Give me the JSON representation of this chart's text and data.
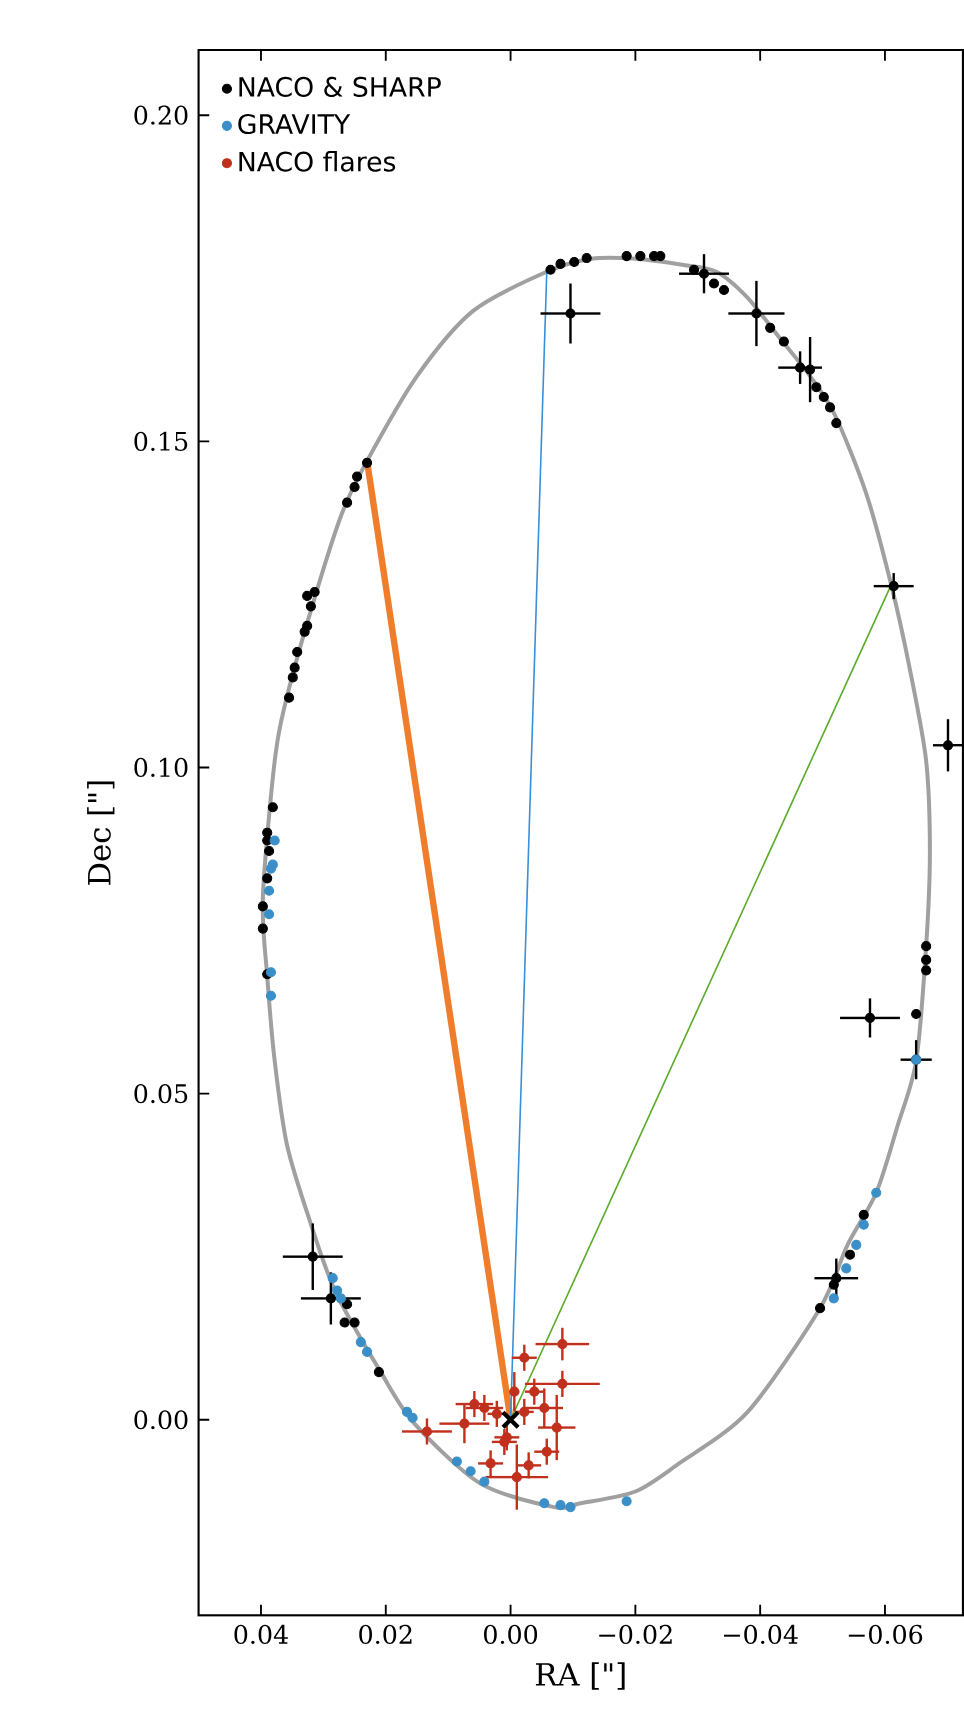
{
  "chart_data": {
    "type": "scatter",
    "xlabel": "RA [\"]",
    "ylabel": "Dec [\"]",
    "legend": "top left",
    "xlim": [
      0.05,
      -0.0725
    ],
    "ylim": [
      -0.03,
      0.21
    ],
    "xticks": [
      {
        "value": 0.04,
        "label": "0.04"
      },
      {
        "value": 0.02,
        "label": "0.02"
      },
      {
        "value": 0,
        "label": "0.00"
      },
      {
        "value": -0.02,
        "label": "−0.02"
      },
      {
        "value": -0.04,
        "label": "−0.04"
      },
      {
        "value": -0.06,
        "label": "−0.06"
      }
    ],
    "yticks": [
      {
        "value": 0,
        "label": "0.00"
      },
      {
        "value": 0.05,
        "label": "0.05"
      },
      {
        "value": 0.1,
        "label": "0.10"
      },
      {
        "value": 0.15,
        "label": "0.15"
      },
      {
        "value": 0.2,
        "label": "0.20"
      }
    ],
    "series": [
      {
        "type": "line",
        "color": "#ef7d2b",
        "marker": "none",
        "x": [
          0,
          0.023
        ],
        "values": [
          0,
          0.147
        ]
      },
      {
        "type": "line",
        "color": "#3a8fd9",
        "marker": "none",
        "x": [
          0,
          -0.0058
        ],
        "values": [
          0,
          0.176
        ]
      },
      {
        "type": "line",
        "color": "#5aaa2a",
        "marker": "none",
        "x": [
          0,
          -0.061
        ],
        "values": [
          0,
          0.128
        ]
      },
      {
        "name": "NACO & SHARP",
        "color": "#000000",
        "marker": "circle",
        "x": [
          -0.0064,
          -0.008,
          -0.0102,
          -0.0122,
          -0.0096,
          -0.0186,
          -0.0208,
          -0.023,
          -0.024,
          -0.0294,
          -0.031,
          -0.0326,
          -0.0342,
          -0.0394,
          -0.0416,
          -0.0438,
          -0.0464,
          -0.048,
          -0.049,
          -0.0502,
          -0.0512,
          -0.0522,
          -0.0614,
          0.023,
          0.0246,
          0.025,
          0.0262,
          0.0314,
          0.0326,
          0.032,
          0.0326,
          0.033,
          0.0342,
          0.0346,
          0.0349,
          0.0355,
          0.0381,
          0.039,
          0.039,
          0.0387,
          0.039,
          0.0397,
          0.0397,
          0.039,
          -0.0701,
          -0.0666,
          -0.0666,
          -0.0666,
          -0.065,
          -0.0576,
          -0.065,
          -0.0566,
          -0.0544,
          -0.0522,
          -0.0518,
          -0.0496,
          0.0317,
          0.0288,
          0.0262,
          0.0266,
          0.025,
          0.0211
        ],
        "values": [
          0.1763,
          0.1772,
          0.1775,
          0.1781,
          0.1696,
          0.1784,
          0.1784,
          0.1784,
          0.1784,
          0.1763,
          0.1757,
          0.1742,
          0.1732,
          0.1696,
          0.1674,
          0.1653,
          0.1613,
          0.161,
          0.1583,
          0.1568,
          0.1552,
          0.1528,
          0.1278,
          0.1467,
          0.1446,
          0.143,
          0.1406,
          0.1269,
          0.1263,
          0.1247,
          0.1217,
          0.1208,
          0.1177,
          0.1153,
          0.1138,
          0.1107,
          0.0939,
          0.09,
          0.0888,
          0.0872,
          0.083,
          0.0787,
          0.0753,
          0.0683,
          0.1034,
          0.0726,
          0.0705,
          0.0689,
          0.0622,
          0.0616,
          0.0552,
          0.0314,
          0.0253,
          0.0217,
          0.0207,
          0.0171,
          0.025,
          0.0186,
          0.0177,
          0.0149,
          0.0149,
          0.0073
        ],
        "xerrors": [
          null,
          null,
          null,
          null,
          0.0048,
          null,
          null,
          null,
          null,
          null,
          0.004,
          null,
          null,
          0.0045,
          null,
          null,
          0.0035,
          null,
          null,
          null,
          null,
          null,
          0.0032,
          null,
          null,
          null,
          null,
          null,
          null,
          null,
          null,
          null,
          null,
          null,
          null,
          null,
          null,
          null,
          null,
          null,
          null,
          null,
          null,
          null,
          0.0024,
          null,
          null,
          null,
          null,
          0.0048,
          0.0025,
          null,
          null,
          0.0035,
          null,
          null,
          0.0048,
          0.0048,
          null,
          null,
          null,
          null
        ],
        "errors": [
          null,
          null,
          null,
          null,
          0.0046,
          null,
          null,
          null,
          null,
          null,
          0.003,
          null,
          null,
          0.005,
          null,
          null,
          0.0025,
          0.005,
          null,
          null,
          null,
          null,
          0.002,
          null,
          null,
          null,
          null,
          null,
          null,
          null,
          null,
          null,
          null,
          null,
          null,
          null,
          null,
          null,
          null,
          null,
          null,
          null,
          null,
          null,
          0.004,
          null,
          null,
          null,
          null,
          0.003,
          0.003,
          null,
          null,
          0.003,
          null,
          null,
          0.0051,
          0.004,
          null,
          null,
          null,
          null
        ]
      },
      {
        "name": "GRAVITY",
        "color": "#3a8fc8",
        "marker": "circle",
        "x": [
          0.0378,
          0.0381,
          0.0384,
          0.0387,
          0.0387,
          0.0384,
          0.0384,
          -0.065,
          -0.0586,
          -0.0566,
          -0.0554,
          -0.0538,
          -0.0518,
          0.0285,
          0.0278,
          0.0272,
          0.024,
          0.023,
          0.0166,
          0.0157,
          0.0086,
          0.0064,
          0.0042,
          -0.0054,
          -0.008,
          -0.0096,
          -0.0186
        ],
        "values": [
          0.0888,
          0.0851,
          0.0845,
          0.0811,
          0.0775,
          0.0686,
          0.065,
          0.0552,
          0.0348,
          0.0299,
          0.0268,
          0.0232,
          0.0186,
          0.0217,
          0.0198,
          0.0186,
          0.0119,
          0.0104,
          0.0012,
          0.0003,
          -0.0064,
          -0.0079,
          -0.0095,
          -0.0128,
          -0.0131,
          -0.0134,
          -0.0125
        ]
      },
      {
        "name": "NACO flares",
        "color": "#c1301c",
        "marker": "circle",
        "x": [
          -0.0083,
          -0.0022,
          -0.0083,
          0.0134,
          0.0074,
          0.0032,
          -0.001,
          -0.0029,
          -0.0074,
          -0.0054,
          0.0042,
          0.0058,
          -0.0006,
          -0.0038,
          0.0022,
          0.0006,
          -0.0022,
          -0.0058,
          0.001
        ],
        "values": [
          0.0116,
          0.0095,
          0.0055,
          -0.0018,
          -0.0006,
          -0.0067,
          -0.0088,
          -0.007,
          -0.0012,
          0.0018,
          0.0018,
          0.0024,
          0.0043,
          0.0043,
          0.0009,
          -0.0027,
          0.0012,
          -0.0049,
          -0.0034
        ],
        "xerrors": [
          0.0043,
          0.002,
          0.006,
          0.004,
          0.004,
          0.002,
          0.005,
          0.002,
          0.003,
          0.003,
          0.003,
          0.003,
          0.0008,
          0.0015,
          0.0015,
          0.002,
          0.0015,
          0.002,
          0.002
        ],
        "errors": [
          0.0025,
          0.002,
          0.002,
          0.002,
          0.003,
          0.002,
          0.005,
          0.002,
          0.005,
          0.003,
          0.002,
          0.002,
          0.003,
          0.002,
          0.002,
          0.002,
          0.002,
          0.002,
          0.002
        ]
      },
      {
        "color": "#000000",
        "marker": "cross",
        "x": [
          0
        ],
        "values": [
          0
        ]
      }
    ]
  }
}
